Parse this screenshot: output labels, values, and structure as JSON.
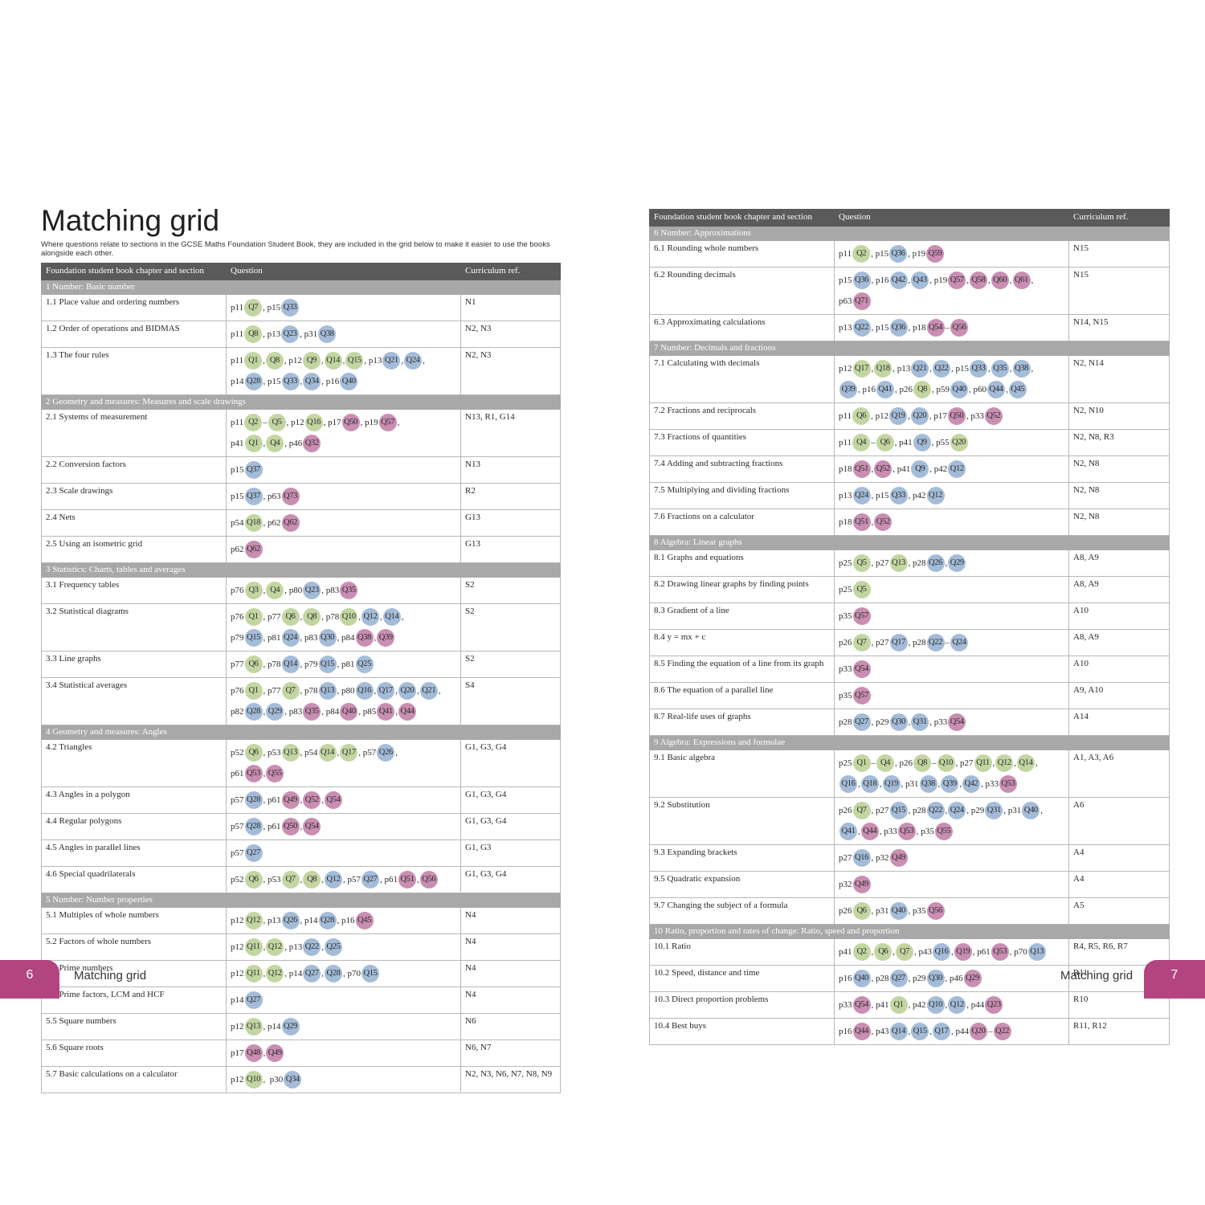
{
  "left": {
    "title": "Matching grid",
    "intro": "Where questions relate to sections in the GCSE Maths Foundation Student Book, they are included in the grid below to make it easier to use the books alongside each other.",
    "headers": [
      "Foundation student book chapter and section",
      "Question",
      "Curriculum ref."
    ],
    "rows": [
      {
        "type": "section",
        "label": "1 Number: Basic number"
      },
      {
        "type": "row",
        "section": "1.1 Place value and ordering numbers",
        "ref": "N1",
        "lines": [
          [
            "p11",
            "g:Q7",
            ", p15",
            "b:Q33"
          ]
        ]
      },
      {
        "type": "row",
        "section": "1.2 Order of operations and BIDMAS",
        "ref": "N2, N3",
        "lines": [
          [
            "p11",
            "g:Q8",
            ", p13",
            "b:Q23",
            ", p31",
            "b:Q38"
          ]
        ]
      },
      {
        "type": "row",
        "section": "1.3 The four rules",
        "ref": "N2, N3",
        "lines": [
          [
            "p11",
            "g:Q1",
            ",",
            "g:Q8",
            ", p12",
            "g:Q9",
            ",",
            "g:Q14",
            ",",
            "g:Q15",
            ", p13",
            "b:Q21",
            ",",
            "b:Q24",
            ","
          ],
          [
            "p14",
            "b:Q28",
            ", p15",
            "b:Q33",
            ",",
            "b:Q34",
            ", p16",
            "b:Q40"
          ]
        ]
      },
      {
        "type": "section",
        "label": "2 Geometry and measures: Measures and scale drawings"
      },
      {
        "type": "row",
        "section": "2.1 Systems of measurement",
        "ref": "N13, R1, G14",
        "lines": [
          [
            "p11",
            "g:Q2",
            "–",
            "g:Q5",
            ", p12",
            "g:Q16",
            ", p17",
            "m:Q50",
            ", p19",
            "m:Q57",
            ","
          ],
          [
            "p41",
            "g:Q1",
            ",",
            "g:Q4",
            ", p46",
            "m:Q32"
          ]
        ]
      },
      {
        "type": "row",
        "section": "2.2 Conversion factors",
        "ref": "N13",
        "lines": [
          [
            "p15",
            "b:Q37"
          ]
        ]
      },
      {
        "type": "row",
        "section": "2.3 Scale drawings",
        "ref": "R2",
        "lines": [
          [
            "p15",
            "b:Q37",
            ", p63",
            "m:Q73"
          ]
        ]
      },
      {
        "type": "row",
        "section": "2.4 Nets",
        "ref": "G13",
        "lines": [
          [
            "p54",
            "g:Q18",
            ", p62",
            "m:Q62"
          ]
        ]
      },
      {
        "type": "row",
        "section": "2.5 Using an isometric grid",
        "ref": "G13",
        "lines": [
          [
            "p62",
            "m:Q62"
          ]
        ]
      },
      {
        "type": "section",
        "label": "3 Statistics: Charts, tables and averages"
      },
      {
        "type": "row",
        "section": "3.1 Frequency tables",
        "ref": "S2",
        "lines": [
          [
            "p76",
            "g:Q3",
            ",",
            "g:Q4",
            ", p80",
            "b:Q23",
            ", p83",
            "m:Q35"
          ]
        ]
      },
      {
        "type": "row",
        "section": "3.2 Statistical diagrams",
        "ref": "S2",
        "lines": [
          [
            "p76",
            "g:Q1",
            ", p77",
            "g:Q6",
            ",",
            "g:Q8",
            ", p78",
            "g:Q10",
            ",",
            "b:Q12",
            ",",
            "b:Q14",
            ","
          ],
          [
            "p79",
            "b:Q15",
            ", p81",
            "b:Q24",
            ", p83",
            "b:Q30",
            ", p84",
            "m:Q38",
            ",",
            "m:Q39"
          ]
        ]
      },
      {
        "type": "row",
        "section": "3.3 Line graphs",
        "ref": "S2",
        "lines": [
          [
            "p77",
            "g:Q6",
            ", p78",
            "b:Q14",
            ", p79",
            "b:Q15",
            ", p81",
            "b:Q25"
          ]
        ]
      },
      {
        "type": "row",
        "section": "3.4 Statistical averages",
        "ref": "S4",
        "lines": [
          [
            "p76",
            "g:Q1",
            ", p77",
            "g:Q7",
            ", p78",
            "b:Q13",
            ", p80",
            "b:Q16",
            ",",
            "b:Q17",
            ",",
            "b:Q20",
            ",",
            "b:Q21",
            ","
          ],
          [
            "p82",
            "b:Q28",
            ",",
            "b:Q29",
            ", p83",
            "m:Q35",
            ", p84",
            "m:Q40",
            ", p85",
            "m:Q41",
            ",",
            "m:Q44"
          ]
        ]
      },
      {
        "type": "section",
        "label": "4 Geometry and measures: Angles"
      },
      {
        "type": "row",
        "section": "4.2 Triangles",
        "ref": "G1, G3, G4",
        "lines": [
          [
            "p52",
            "g:Q6",
            ", p53",
            "g:Q13",
            ", p54",
            "g:Q14",
            ",",
            "g:Q17",
            ", p57",
            "b:Q26",
            ","
          ],
          [
            "p61",
            "m:Q53",
            ",",
            "m:Q55"
          ]
        ]
      },
      {
        "type": "row",
        "section": "4.3 Angles in a polygon",
        "ref": "G1, G3, G4",
        "lines": [
          [
            "p57",
            "b:Q28",
            ", p61",
            "m:Q49",
            ",",
            "m:Q52",
            ",",
            "m:Q54"
          ]
        ]
      },
      {
        "type": "row",
        "section": "4.4 Regular polygons",
        "ref": "G1, G3, G4",
        "lines": [
          [
            "p57",
            "b:Q28",
            ", p61",
            "m:Q50",
            ",",
            "m:Q54"
          ]
        ]
      },
      {
        "type": "row",
        "section": "4.5 Angles in parallel lines",
        "ref": "G1, G3",
        "lines": [
          [
            "p57",
            "b:Q27"
          ]
        ]
      },
      {
        "type": "row",
        "section": "4.6 Special quadrilaterals",
        "ref": "G1, G3, G4",
        "lines": [
          [
            "p52",
            "g:Q6",
            ", p53",
            "g:Q7",
            ",",
            "g:Q8",
            ",",
            "b:Q12",
            ", p57",
            "b:Q27",
            ", p61",
            "m:Q51",
            ",",
            "m:Q56"
          ]
        ]
      },
      {
        "type": "section",
        "label": "5 Number: Number properties"
      },
      {
        "type": "row",
        "section": "5.1 Multiples of whole numbers",
        "ref": "N4",
        "lines": [
          [
            "p12",
            "g:Q12",
            ", p13",
            "b:Q26",
            ", p14",
            "b:Q28",
            ", p16",
            "m:Q45"
          ]
        ]
      },
      {
        "type": "row",
        "section": "5.2 Factors of whole numbers",
        "ref": "N4",
        "lines": [
          [
            "p12",
            "g:Q11",
            ",",
            "g:Q12",
            ", p13",
            "b:Q22",
            ",",
            "b:Q25"
          ]
        ]
      },
      {
        "type": "row",
        "section": "5.3 Prime numbers",
        "ref": "N4",
        "lines": [
          [
            "p12",
            "g:Q11",
            ",",
            "g:Q12",
            ", p14",
            "b:Q27",
            ",",
            "b:Q28",
            ", p70",
            "b:Q15"
          ]
        ]
      },
      {
        "type": "row",
        "section": "5.4 Prime factors, LCM and HCF",
        "ref": "N4",
        "lines": [
          [
            "p14",
            "b:Q27"
          ]
        ]
      },
      {
        "type": "row",
        "section": "5.5 Square numbers",
        "ref": "N6",
        "lines": [
          [
            "p12",
            "g:Q13",
            ", p14",
            "b:Q29"
          ]
        ]
      },
      {
        "type": "row",
        "section": "5.6 Square roots",
        "ref": "N6, N7",
        "lines": [
          [
            "p17",
            "m:Q48",
            ",",
            "m:Q49"
          ]
        ]
      },
      {
        "type": "row",
        "section": "5.7 Basic calculations on a calculator",
        "ref": "N2, N3, N6, N7, N8, N9",
        "lines": [
          [
            "p12",
            "g:Q10",
            ",  p30",
            "b:Q34"
          ]
        ]
      }
    ]
  },
  "right": {
    "headers": [
      "Foundation student book chapter and section",
      "Question",
      "Curriculum ref."
    ],
    "rows": [
      {
        "type": "section",
        "label": "6 Number: Approximations"
      },
      {
        "type": "row",
        "section": "6.1 Rounding whole numbers",
        "ref": "N15",
        "lines": [
          [
            "p11",
            "g:Q2",
            ", p15",
            "b:Q36",
            ", p19",
            "m:Q59"
          ]
        ]
      },
      {
        "type": "row",
        "section": "6.2 Rounding decimals",
        "ref": "N15",
        "lines": [
          [
            "p15",
            "b:Q36",
            ", p16",
            "b:Q42",
            ",",
            "b:Q43",
            ", p19",
            "m:Q57",
            ",",
            "m:Q58",
            ",",
            "m:Q60",
            ",",
            "m:Q61",
            ","
          ],
          [
            "p63",
            "m:Q71"
          ]
        ]
      },
      {
        "type": "row",
        "section": "6.3 Approximating calculations",
        "ref": "N14, N15",
        "lines": [
          [
            "p13",
            "b:Q22",
            ", p15",
            "b:Q36",
            ", p18",
            "m:Q54",
            "–",
            "m:Q56"
          ]
        ]
      },
      {
        "type": "section",
        "label": "7 Number: Decimals and fractions"
      },
      {
        "type": "row",
        "section": "7.1 Calculating with decimals",
        "ref": "N2, N14",
        "lines": [
          [
            "p12",
            "g:Q17",
            ",",
            "g:Q18",
            ", p13",
            "b:Q21",
            ",",
            "b:Q22",
            ", p15",
            "b:Q33",
            ",",
            "b:Q35",
            ",",
            "b:Q38",
            ","
          ],
          [
            "b:Q39",
            ", p16",
            "b:Q41",
            ", p26",
            "g:Q8",
            ", p59",
            "b:Q40",
            ", p60",
            "b:Q44",
            ",",
            "b:Q45"
          ]
        ]
      },
      {
        "type": "row",
        "section": "7.2 Fractions and reciprocals",
        "ref": "N2, N10",
        "lines": [
          [
            "p11",
            "g:Q6",
            ", p12",
            "b:Q19",
            ",",
            "b:Q20",
            ", p17",
            "m:Q50",
            ", p33",
            "m:Q52"
          ]
        ]
      },
      {
        "type": "row",
        "section": "7.3 Fractions of quantities",
        "ref": "N2, N8, R3",
        "lines": [
          [
            "p11",
            "g:Q4",
            "–",
            "g:Q6",
            ", p41",
            "b:Q9",
            ", p55",
            "g:Q20"
          ]
        ]
      },
      {
        "type": "row",
        "section": "7.4 Adding and subtracting fractions",
        "ref": "N2, N8",
        "lines": [
          [
            "p18",
            "m:Q51",
            ",",
            "m:Q52",
            ", p41",
            "b:Q9",
            ", p42",
            "b:Q12"
          ]
        ]
      },
      {
        "type": "row",
        "section": "7.5 Multiplying and dividing fractions",
        "ref": "N2, N8",
        "lines": [
          [
            "p13",
            "b:Q24",
            ", p15",
            "b:Q33",
            ", p42",
            "b:Q12"
          ]
        ]
      },
      {
        "type": "row",
        "section": "7.6 Fractions on a calculator",
        "ref": "N2, N8",
        "lines": [
          [
            "p18",
            "m:Q51",
            ",",
            "m:Q52"
          ]
        ]
      },
      {
        "type": "section",
        "label": "8 Algebra: Linear graphs"
      },
      {
        "type": "row",
        "section": "8.1 Graphs and equations",
        "ref": "A8, A9",
        "lines": [
          [
            "p25",
            "g:Q5",
            ", p27",
            "g:Q13",
            ", p28",
            "b:Q26",
            ",",
            "b:Q29"
          ]
        ]
      },
      {
        "type": "row",
        "section": "8.2 Drawing linear graphs by finding points",
        "ref": "A8, A9",
        "lines": [
          [
            "p25",
            "g:Q5"
          ]
        ]
      },
      {
        "type": "row",
        "section": "8.3 Gradient of a line",
        "ref": "A10",
        "lines": [
          [
            "p35",
            "m:Q57"
          ]
        ]
      },
      {
        "type": "row",
        "section": "8.4 y = mx + c",
        "ref": "A8, A9",
        "lines": [
          [
            "p26",
            "g:Q7",
            ", p27",
            "b:Q17",
            ", p28",
            "b:Q22",
            "–",
            "b:Q24"
          ]
        ]
      },
      {
        "type": "row",
        "section": "8.5 Finding the equation of a line from its graph",
        "ref": "A10",
        "lines": [
          [
            "p33",
            "m:Q54"
          ]
        ]
      },
      {
        "type": "row",
        "section": "8.6 The equation of a parallel line",
        "ref": "A9, A10",
        "lines": [
          [
            "p35",
            "m:Q57"
          ]
        ]
      },
      {
        "type": "row",
        "section": "8.7 Real-life uses of graphs",
        "ref": "A14",
        "lines": [
          [
            "p28",
            "b:Q27",
            ", p29",
            "b:Q30",
            ",",
            "b:Q31",
            ", p33",
            "m:Q54"
          ]
        ]
      },
      {
        "type": "section",
        "label": "9 Algebra: Expressions and formulae"
      },
      {
        "type": "row",
        "section": "9.1 Basic algebra",
        "ref": "A1, A3, A6",
        "lines": [
          [
            "p25",
            "g:Q1",
            "–",
            "g:Q4",
            ", p26",
            "g:Q8",
            "–",
            "g:Q10",
            ", p27",
            "g:Q11",
            ",",
            "g:Q12",
            ",",
            "g:Q14",
            ","
          ],
          [
            "b:Q16",
            ",",
            "b:Q18",
            ",",
            "b:Q19",
            ", p31",
            "b:Q38",
            ",",
            "b:Q39",
            ",",
            "b:Q42",
            ", p33",
            "m:Q53"
          ]
        ]
      },
      {
        "type": "row",
        "section": "9.2 Substitution",
        "ref": "A6",
        "lines": [
          [
            "p26",
            "g:Q7",
            ", p27",
            "b:Q15",
            ", p28",
            "b:Q22",
            ",",
            "b:Q24",
            ", p29",
            "b:Q31",
            ", p31",
            "b:Q40",
            ","
          ],
          [
            "b:Q41",
            ",",
            "m:Q44",
            ", p33",
            "m:Q53",
            ", p35",
            "m:Q55"
          ]
        ]
      },
      {
        "type": "row",
        "section": "9.3 Expanding brackets",
        "ref": "A4",
        "lines": [
          [
            "p27",
            "b:Q16",
            ", p32",
            "m:Q49"
          ]
        ]
      },
      {
        "type": "row",
        "section": "9.5 Quadratic expansion",
        "ref": "A4",
        "lines": [
          [
            "p32",
            "m:Q49"
          ]
        ]
      },
      {
        "type": "row",
        "section": "9.7 Changing the subject of a formula",
        "ref": "A5",
        "lines": [
          [
            "p26",
            "g:Q6",
            ", p31",
            "b:Q40",
            ", p35",
            "m:Q56"
          ]
        ]
      },
      {
        "type": "section",
        "label": "10 Ratio, proportion and rates of change: Ratio, speed and proportion"
      },
      {
        "type": "row",
        "section": "10.1 Ratio",
        "ref": "R4, R5, R6, R7",
        "lines": [
          [
            "p41",
            "g:Q2",
            ",",
            "g:Q6",
            ",",
            "g:Q7",
            ", p43",
            "b:Q16",
            ",",
            "m:Q19",
            ", p61",
            "m:Q53",
            ", p70",
            "b:Q13"
          ]
        ]
      },
      {
        "type": "row",
        "section": "10.2 Speed, distance and time",
        "ref": "R11",
        "lines": [
          [
            "p16",
            "b:Q40",
            ", p28",
            "b:Q27",
            ", p29",
            "b:Q30",
            ", p46",
            "m:Q29"
          ]
        ]
      },
      {
        "type": "row",
        "section": "10.3 Direct proportion problems",
        "ref": "R10",
        "lines": [
          [
            "p33",
            "m:Q54",
            ", p41",
            "g:Q1",
            ", p42",
            "b:Q10",
            ",",
            "b:Q12",
            ", p44",
            "m:Q23"
          ]
        ]
      },
      {
        "type": "row",
        "section": "10.4 Best buys",
        "ref": "R11, R12",
        "lines": [
          [
            "p16",
            "m:Q44",
            ", p43",
            "b:Q14",
            ",",
            "b:Q15",
            ",",
            "b:Q17",
            ", p44",
            "m:Q20",
            "–",
            "m:Q22"
          ]
        ]
      }
    ]
  },
  "footer": {
    "left_page_number": "6",
    "left_label": "Matching grid",
    "right_page_number": "7",
    "right_label": "Matching grid"
  },
  "colors": {
    "header_bg": "#5a5a5a",
    "section_bg": "#a8a8a8",
    "badge_green": "#c3d6a2",
    "badge_blue": "#a4bcd8",
    "badge_magenta": "#c98eb2",
    "footer_tab": "#b2457f"
  }
}
